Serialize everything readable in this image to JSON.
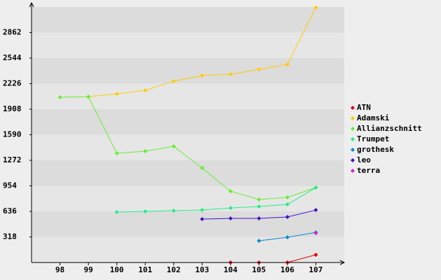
{
  "chart_data": {
    "type": "line",
    "x": [
      98,
      99,
      100,
      101,
      102,
      103,
      104,
      105,
      106,
      107
    ],
    "xlim": [
      97,
      108
    ],
    "xticks": [
      98,
      99,
      100,
      101,
      102,
      103,
      104,
      105,
      106,
      107
    ],
    "ylim": [
      0,
      3180
    ],
    "yticks": [
      318,
      636,
      954,
      1272,
      1590,
      1908,
      2226,
      2544,
      2862
    ],
    "legend": "right",
    "series": [
      {
        "name": "ATN",
        "color": "#e00000",
        "values": [
          null,
          null,
          null,
          null,
          null,
          null,
          0,
          0,
          0,
          96
        ]
      },
      {
        "name": "Adamski",
        "color": "#ffcc00",
        "values": [
          null,
          2064,
          2099,
          2143,
          2256,
          2326,
          2343,
          2404,
          2465,
          3175
        ]
      },
      {
        "name": "Allianzschnitt",
        "color": "#66ee33",
        "values": [
          2056,
          2064,
          1359,
          1385,
          1446,
          1176,
          888,
          784,
          810,
          932
        ]
      },
      {
        "name": "Trumpet",
        "color": "#22ee88",
        "values": [
          null,
          null,
          627,
          636,
          645,
          653,
          679,
          697,
          723,
          932
        ]
      },
      {
        "name": "grothesk",
        "color": "#1188cc",
        "values": [
          null,
          null,
          null,
          null,
          null,
          null,
          null,
          270,
          314,
          375
        ]
      },
      {
        "name": "leo",
        "color": "#4411cc",
        "values": [
          null,
          null,
          null,
          null,
          null,
          540,
          549,
          549,
          566,
          653
        ]
      },
      {
        "name": "terra",
        "color": "#dd22cc",
        "values": [
          null,
          null,
          null,
          null,
          null,
          null,
          null,
          null,
          null,
          366
        ]
      }
    ]
  }
}
